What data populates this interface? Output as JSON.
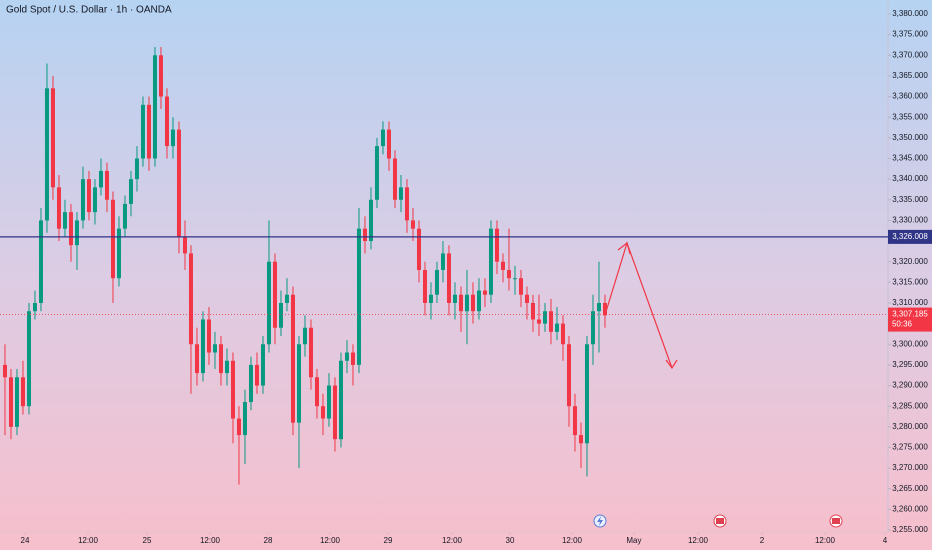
{
  "chart_data": {
    "type": "candlestick",
    "title": "Gold Spot / U.S. Dollar · 1h · OANDA",
    "up_color": "#089981",
    "down_color": "#f23645",
    "open": [
      3295,
      3292,
      3280,
      3292,
      3285,
      3308,
      3310,
      3330,
      3362,
      3338,
      3328,
      3332,
      3324,
      3330,
      3340,
      3332,
      3338,
      3342,
      3335,
      3316,
      3328,
      3334,
      3340,
      3345,
      3358,
      3345,
      3370,
      3360,
      3348,
      3352,
      3326,
      3322,
      3300,
      3293,
      3306,
      3298,
      3300,
      3293,
      3296,
      3282,
      3278,
      3286,
      3295,
      3290,
      3300,
      3320,
      3304,
      3310,
      3312,
      3281,
      3300,
      3304,
      3292,
      3285,
      3282,
      3290,
      3277,
      3296,
      3298,
      3295,
      3328,
      3325,
      3335,
      3348,
      3352,
      3345,
      3335,
      3338,
      3330,
      3328,
      3318,
      3310,
      3312,
      3318,
      3322,
      3310,
      3312,
      3308,
      3312,
      3308,
      3313,
      3312,
      3328,
      3320,
      3318,
      3316,
      3316,
      3312,
      3310,
      3306,
      3305,
      3308,
      3303,
      3305,
      3300,
      3285,
      3278,
      3276,
      3300,
      3308,
      3310
    ],
    "high": [
      3300,
      3294,
      3294,
      3296,
      3310,
      3313,
      3333,
      3368,
      3365,
      3341,
      3335,
      3334,
      3332,
      3343,
      3342,
      3340,
      3345,
      3344,
      3337,
      3331,
      3336,
      3342,
      3348,
      3360,
      3360,
      3372,
      3372,
      3362,
      3355,
      3354,
      3330,
      3324,
      3304,
      3308,
      3309,
      3303,
      3302,
      3299,
      3298,
      3285,
      3289,
      3297,
      3298,
      3302,
      3330,
      3322,
      3313,
      3316,
      3314,
      3302,
      3307,
      3306,
      3294,
      3288,
      3293,
      3292,
      3298,
      3301,
      3300,
      3333,
      3331,
      3338,
      3350,
      3354,
      3354,
      3347,
      3341,
      3340,
      3333,
      3330,
      3320,
      3315,
      3320,
      3325,
      3324,
      3315,
      3314,
      3318,
      3315,
      3316,
      3316,
      3330,
      3330,
      3322,
      3328,
      3319,
      3318,
      3314,
      3312,
      3312,
      3310,
      3311,
      3309,
      3307,
      3302,
      3288,
      3281,
      3302,
      3312,
      3320,
      3312
    ],
    "low": [
      3278,
      3277,
      3278,
      3283,
      3283,
      3306,
      3308,
      3327,
      3335,
      3325,
      3326,
      3320,
      3318,
      3328,
      3330,
      3329,
      3336,
      3332,
      3310,
      3314,
      3326,
      3331,
      3337,
      3343,
      3342,
      3343,
      3357,
      3345,
      3345,
      3322,
      3318,
      3288,
      3290,
      3291,
      3295,
      3294,
      3290,
      3290,
      3276,
      3266,
      3271,
      3284,
      3288,
      3288,
      3298,
      3300,
      3302,
      3308,
      3278,
      3270,
      3297,
      3289,
      3282,
      3278,
      3280,
      3274,
      3275,
      3293,
      3290,
      3293,
      3322,
      3323,
      3333,
      3346,
      3342,
      3333,
      3332,
      3327,
      3325,
      3315,
      3307,
      3306,
      3310,
      3315,
      3307,
      3306,
      3303,
      3300,
      3305,
      3306,
      3309,
      3310,
      3317,
      3315,
      3313,
      3312,
      3309,
      3306,
      3303,
      3302,
      3303,
      3300,
      3301,
      3296,
      3280,
      3274,
      3270,
      3268,
      3295,
      3298,
      3304
    ],
    "close": [
      3292,
      3280,
      3292,
      3285,
      3308,
      3310,
      3330,
      3362,
      3338,
      3328,
      3332,
      3324,
      3330,
      3340,
      3332,
      3338,
      3342,
      3335,
      3316,
      3328,
      3334,
      3340,
      3345,
      3358,
      3345,
      3370,
      3360,
      3348,
      3352,
      3326,
      3322,
      3300,
      3293,
      3306,
      3298,
      3300,
      3293,
      3296,
      3282,
      3278,
      3286,
      3295,
      3290,
      3300,
      3320,
      3304,
      3310,
      3312,
      3281,
      3300,
      3304,
      3292,
      3285,
      3282,
      3290,
      3277,
      3296,
      3298,
      3295,
      3328,
      3325,
      3335,
      3348,
      3352,
      3345,
      3335,
      3338,
      3330,
      3328,
      3318,
      3310,
      3312,
      3318,
      3322,
      3310,
      3312,
      3308,
      3312,
      3308,
      3313,
      3312,
      3328,
      3320,
      3318,
      3316,
      3316,
      3312,
      3310,
      3306,
      3305,
      3308,
      3303,
      3305,
      3300,
      3285,
      3278,
      3276,
      3300,
      3308,
      3310,
      3307
    ],
    "xlim": [
      -0.83,
      147.17
    ],
    "xticks": [
      {
        "value": 3.33,
        "label": "24"
      },
      {
        "value": 13.83,
        "label": "12:00"
      },
      {
        "value": 23.67,
        "label": "25"
      },
      {
        "value": 34.17,
        "label": "12:00"
      },
      {
        "value": 43.83,
        "label": "28"
      },
      {
        "value": 54.17,
        "label": "12:00"
      },
      {
        "value": 63.83,
        "label": "29"
      },
      {
        "value": 74.5,
        "label": "12:00"
      },
      {
        "value": 84.17,
        "label": "30"
      },
      {
        "value": 94.5,
        "label": "12:00"
      },
      {
        "value": 104.83,
        "label": "May"
      },
      {
        "value": 115.5,
        "label": "12:00"
      },
      {
        "value": 126.17,
        "label": "2"
      },
      {
        "value": 136.67,
        "label": "12:00"
      },
      {
        "value": 146.67,
        "label": "4"
      }
    ],
    "ylim": [
      3254.52,
      3383.39
    ],
    "yticks": [
      {
        "value": 3255,
        "label": "3,255.000"
      },
      {
        "value": 3260,
        "label": "3,260.000"
      },
      {
        "value": 3265,
        "label": "3,265.000"
      },
      {
        "value": 3270,
        "label": "3,270.000"
      },
      {
        "value": 3275,
        "label": "3,275.000"
      },
      {
        "value": 3280,
        "label": "3,280.000"
      },
      {
        "value": 3285,
        "label": "3,285.000"
      },
      {
        "value": 3290,
        "label": "3,290.000"
      },
      {
        "value": 3295,
        "label": "3,295.000"
      },
      {
        "value": 3300,
        "label": "3,300.000"
      },
      {
        "value": 3305,
        "label": "3,305.000"
      },
      {
        "value": 3310,
        "label": "3,310.000"
      },
      {
        "value": 3315,
        "label": "3,315.000"
      },
      {
        "value": 3320,
        "label": "3,320.000"
      },
      {
        "value": 3325,
        "label": "3,325.000"
      },
      {
        "value": 3330,
        "label": "3,330.000"
      },
      {
        "value": 3335,
        "label": "3,335.000"
      },
      {
        "value": 3340,
        "label": "3,340.000"
      },
      {
        "value": 3345,
        "label": "3,345.000"
      },
      {
        "value": 3350,
        "label": "3,350.000"
      },
      {
        "value": 3355,
        "label": "3,355.000"
      },
      {
        "value": 3360,
        "label": "3,360.000"
      },
      {
        "value": 3365,
        "label": "3,365.000"
      },
      {
        "value": 3370,
        "label": "3,370.000"
      },
      {
        "value": 3375,
        "label": "3,375.000"
      },
      {
        "value": 3380,
        "label": "3,380.000"
      }
    ],
    "hline": {
      "value": 3326.008,
      "label": "3,326.008",
      "color": "#2f3487"
    },
    "last_price": {
      "value": 3307.185,
      "label": "3,307.185",
      "countdown": "50:36"
    }
  }
}
